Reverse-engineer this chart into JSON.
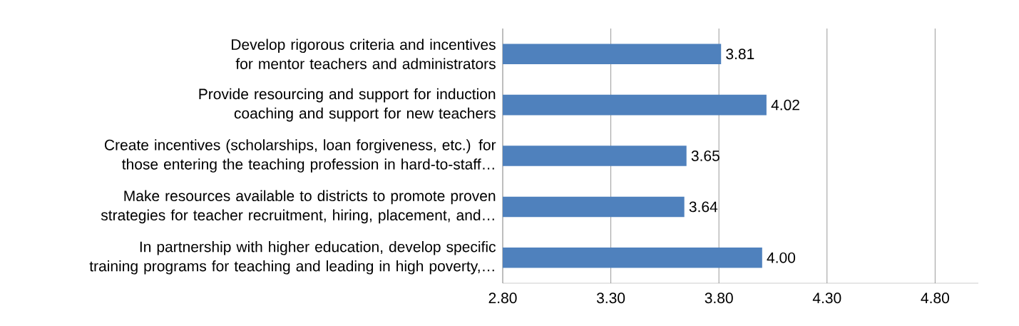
{
  "chart_data": {
    "type": "bar",
    "orientation": "horizontal",
    "categories": [
      "Develop rigorous criteria and incentives for mentor teachers and administrators",
      "Provide resourcing and support for induction coaching and support for new teachers",
      "Create incentives (scholarships, loan forgiveness, etc.) for those entering the teaching profession in hard-to-staff…",
      "Make resources available to districts to promote proven strategies for teacher recruitment, hiring, placement, and…",
      "In partnership with higher education, develop specific training programs for teaching and leading in high poverty,…"
    ],
    "values": [
      3.81,
      4.02,
      3.65,
      3.64,
      4.0
    ],
    "value_labels": [
      "3.81",
      "4.02",
      "3.65",
      "3.64",
      "4.00"
    ],
    "color": "#4f81bd",
    "xlim": [
      2.8,
      5.0
    ],
    "xticks": [
      {
        "value": 2.8,
        "label": "2.80"
      },
      {
        "value": 3.3,
        "label": "3.30"
      },
      {
        "value": 3.8,
        "label": "3.80"
      },
      {
        "value": 4.3,
        "label": "4.30"
      },
      {
        "value": 4.8,
        "label": "4.80"
      }
    ],
    "grid": "x"
  }
}
